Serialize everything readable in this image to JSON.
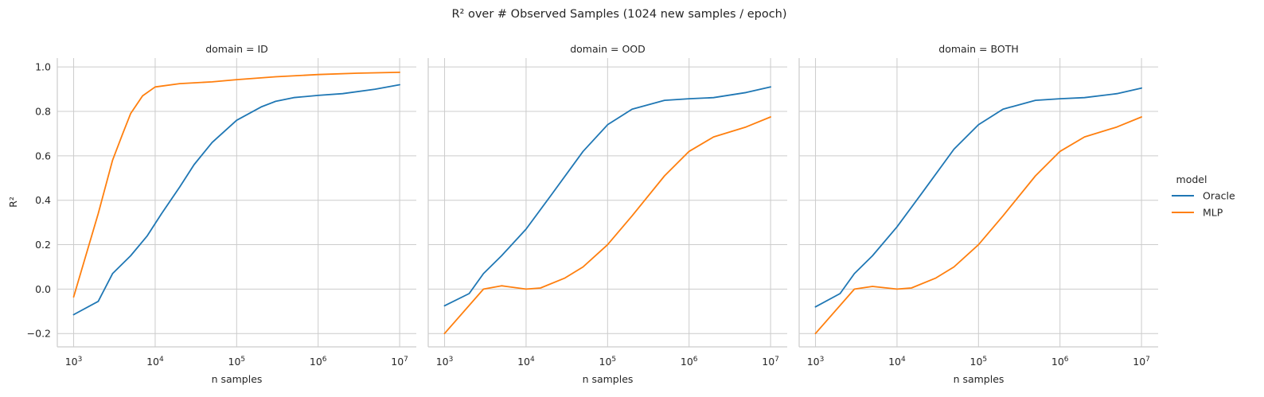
{
  "figure": {
    "title": "R² over # Observed Samples (1024 new samples / epoch)",
    "ylabel": "R²",
    "xlabel": "n samples"
  },
  "legend": {
    "title": "model",
    "placement": "right",
    "entries": [
      {
        "name": "Oracle",
        "color": "#1f77b4"
      },
      {
        "name": "MLP",
        "color": "#ff7f0e"
      }
    ]
  },
  "axes": {
    "x_scale": "log",
    "x_ticks": [
      "10^3",
      "10^4",
      "10^5",
      "10^6",
      "10^7"
    ],
    "y_ticks": [
      "−0.2",
      "0.0",
      "0.2",
      "0.4",
      "0.6",
      "0.8",
      "1.0"
    ],
    "grid": true
  },
  "chart_data": [
    {
      "type": "line",
      "title": "domain = ID",
      "xlabel": "n samples",
      "ylabel": "R²",
      "xscale": "log",
      "xlim": [
        630,
        16000000
      ],
      "ylim": [
        -0.26,
        1.04
      ],
      "series": [
        {
          "name": "Oracle",
          "color": "#1f77b4",
          "points": [
            [
              1000,
              -0.115
            ],
            [
              2000,
              -0.055
            ],
            [
              3000,
              0.07
            ],
            [
              5000,
              0.15
            ],
            [
              8000,
              0.24
            ],
            [
              12000,
              0.34
            ],
            [
              20000,
              0.46
            ],
            [
              30000,
              0.56
            ],
            [
              50000,
              0.66
            ],
            [
              100000,
              0.76
            ],
            [
              200000,
              0.82
            ],
            [
              300000,
              0.845
            ],
            [
              500000,
              0.862
            ],
            [
              1000000,
              0.872
            ],
            [
              2000000,
              0.88
            ],
            [
              5000000,
              0.9
            ],
            [
              10000000,
              0.92
            ]
          ]
        },
        {
          "name": "MLP",
          "color": "#ff7f0e",
          "points": [
            [
              1000,
              -0.035
            ],
            [
              2000,
              0.34
            ],
            [
              3000,
              0.58
            ],
            [
              4000,
              0.7
            ],
            [
              5000,
              0.79
            ],
            [
              7000,
              0.87
            ],
            [
              10000,
              0.91
            ],
            [
              20000,
              0.925
            ],
            [
              50000,
              0.933
            ],
            [
              100000,
              0.943
            ],
            [
              300000,
              0.956
            ],
            [
              1000000,
              0.966
            ],
            [
              3000000,
              0.972
            ],
            [
              10000000,
              0.976
            ]
          ]
        }
      ]
    },
    {
      "type": "line",
      "title": "domain = OOD",
      "xlabel": "n samples",
      "ylabel": "",
      "xscale": "log",
      "xlim": [
        630,
        16000000
      ],
      "ylim": [
        -0.26,
        1.04
      ],
      "series": [
        {
          "name": "Oracle",
          "color": "#1f77b4",
          "points": [
            [
              1000,
              -0.075
            ],
            [
              2000,
              -0.02
            ],
            [
              3000,
              0.07
            ],
            [
              5000,
              0.15
            ],
            [
              10000,
              0.27
            ],
            [
              20000,
              0.42
            ],
            [
              50000,
              0.62
            ],
            [
              100000,
              0.74
            ],
            [
              200000,
              0.81
            ],
            [
              500000,
              0.85
            ],
            [
              1000000,
              0.857
            ],
            [
              2000000,
              0.862
            ],
            [
              5000000,
              0.885
            ],
            [
              10000000,
              0.91
            ]
          ]
        },
        {
          "name": "MLP",
          "color": "#ff7f0e",
          "points": [
            [
              1000,
              -0.2
            ],
            [
              3000,
              0.0
            ],
            [
              5000,
              0.015
            ],
            [
              10000,
              0.0
            ],
            [
              15000,
              0.005
            ],
            [
              30000,
              0.05
            ],
            [
              50000,
              0.1
            ],
            [
              100000,
              0.2
            ],
            [
              200000,
              0.33
            ],
            [
              500000,
              0.51
            ],
            [
              1000000,
              0.62
            ],
            [
              2000000,
              0.685
            ],
            [
              5000000,
              0.73
            ],
            [
              10000000,
              0.775
            ]
          ]
        }
      ]
    },
    {
      "type": "line",
      "title": "domain = BOTH",
      "xlabel": "n samples",
      "ylabel": "",
      "xscale": "log",
      "xlim": [
        630,
        16000000
      ],
      "ylim": [
        -0.26,
        1.04
      ],
      "series": [
        {
          "name": "Oracle",
          "color": "#1f77b4",
          "points": [
            [
              1000,
              -0.08
            ],
            [
              2000,
              -0.02
            ],
            [
              3000,
              0.07
            ],
            [
              5000,
              0.15
            ],
            [
              10000,
              0.28
            ],
            [
              20000,
              0.43
            ],
            [
              50000,
              0.63
            ],
            [
              100000,
              0.74
            ],
            [
              200000,
              0.81
            ],
            [
              500000,
              0.85
            ],
            [
              1000000,
              0.857
            ],
            [
              2000000,
              0.862
            ],
            [
              5000000,
              0.88
            ],
            [
              10000000,
              0.905
            ]
          ]
        },
        {
          "name": "MLP",
          "color": "#ff7f0e",
          "points": [
            [
              1000,
              -0.2
            ],
            [
              3000,
              0.0
            ],
            [
              5000,
              0.012
            ],
            [
              10000,
              0.0
            ],
            [
              15000,
              0.005
            ],
            [
              30000,
              0.05
            ],
            [
              50000,
              0.1
            ],
            [
              100000,
              0.2
            ],
            [
              200000,
              0.33
            ],
            [
              500000,
              0.51
            ],
            [
              1000000,
              0.62
            ],
            [
              2000000,
              0.685
            ],
            [
              5000000,
              0.73
            ],
            [
              10000000,
              0.775
            ]
          ]
        }
      ]
    }
  ]
}
